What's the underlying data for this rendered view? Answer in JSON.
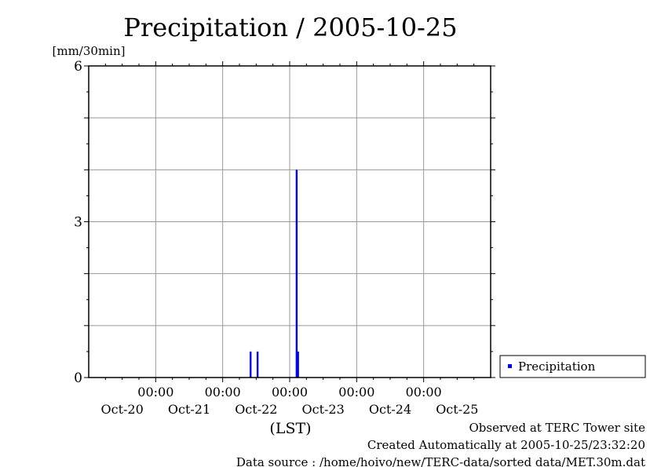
{
  "chart_data": {
    "type": "bar",
    "title": "Precipitation / 2005-10-25",
    "ylabel": "[mm/30min]",
    "xlabel": "(LST)",
    "ylim": [
      0,
      6
    ],
    "yticks": [
      "0",
      "3",
      "6"
    ],
    "x_range_hours_from_oct20": [
      0,
      144
    ],
    "day_labels": [
      "Oct-20",
      "Oct-21",
      "Oct-22",
      "Oct-23",
      "Oct-24",
      "Oct-25"
    ],
    "time_label": "00:00",
    "legend": {
      "label": "Precipitation",
      "position": "right",
      "color": "#0000ff"
    },
    "series": [
      {
        "name": "Precipitation",
        "color": "#0000ff",
        "points": [
          {
            "time": "Oct-22 10:00",
            "hours": 58,
            "value": 0.5
          },
          {
            "time": "Oct-22 12:30",
            "hours": 60.5,
            "value": 0.5
          },
          {
            "time": "Oct-23 02:30",
            "hours": 74.5,
            "value": 4.0
          },
          {
            "time": "Oct-23 03:00",
            "hours": 75,
            "value": 0.5
          }
        ]
      }
    ]
  },
  "footer": {
    "observed": "Observed at TERC Tower site",
    "created": "Created Automatically at 2005-10-25/23:32:20",
    "source": "Data source : /home/hoivo/new/TERC-data/sorted  data/MET.30m.dat"
  }
}
